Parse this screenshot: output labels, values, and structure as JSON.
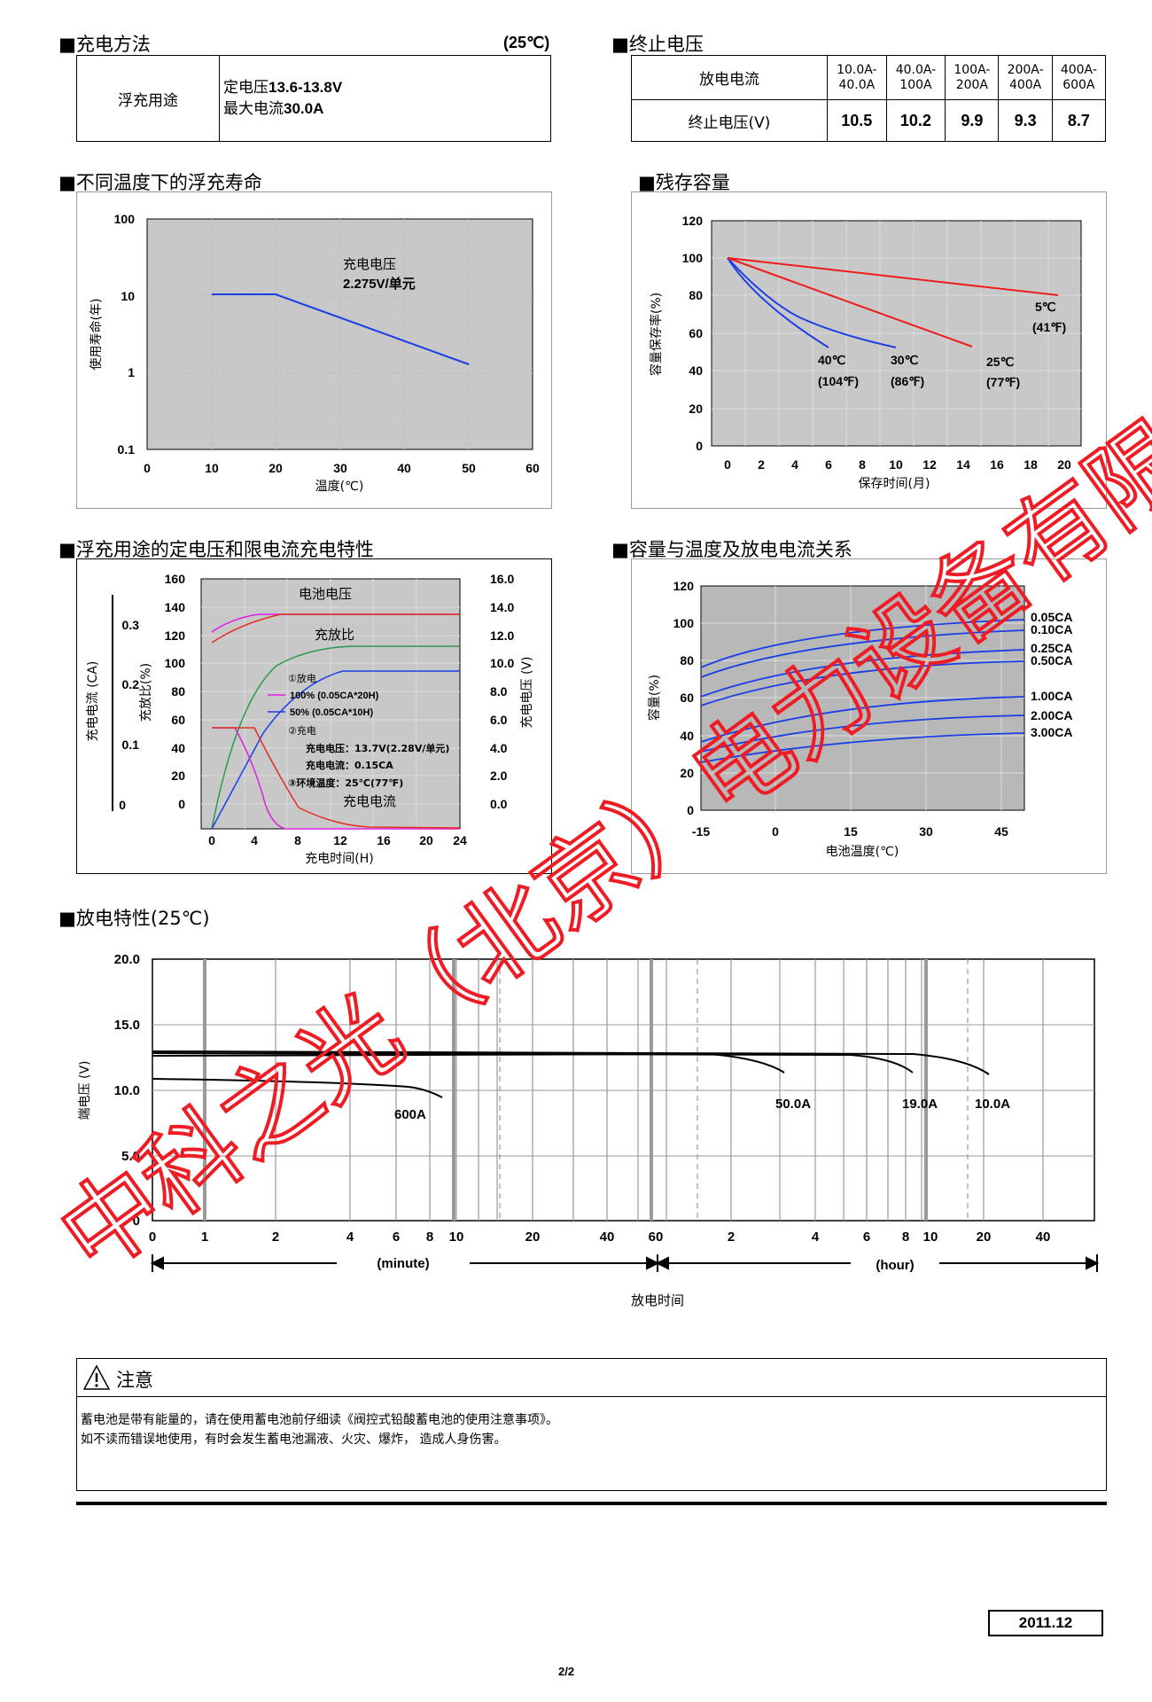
{
  "charge_method": {
    "title": "■充电方法",
    "temp": "(25℃)",
    "mode": "浮充用途",
    "voltage_prefix": "定电压",
    "voltage_value": "13.6-13.8V",
    "current_prefix": "最大电流",
    "current_value": "30.0A"
  },
  "end_voltage": {
    "title": "■终止电压",
    "row1_label": "放电电流",
    "row2_label": "终止电压(V)",
    "currents": [
      [
        "10.0A-",
        "40.0A"
      ],
      [
        "40.0A-",
        "100A"
      ],
      [
        "100A-",
        "200A"
      ],
      [
        "200A-",
        "400A"
      ],
      [
        "400A-",
        "600A"
      ]
    ],
    "voltages": [
      "10.5",
      "10.2",
      "9.9",
      "9.3",
      "8.7"
    ]
  },
  "float_life": {
    "title": "■不同温度下的浮充寿命",
    "annotation_line1": "充电电压",
    "annotation_line2": "2.275V/单元",
    "xlabel": "温度(℃)",
    "ylabel": "使用寿命(年)",
    "xticks": [
      "0",
      "10",
      "20",
      "30",
      "40",
      "50",
      "60"
    ],
    "yticks": [
      "100",
      "10",
      "1",
      "0.1"
    ],
    "series_color": "#1a3ee6"
  },
  "residual_capacity": {
    "title": "■残存容量",
    "xlabel": "保存时间(月)",
    "ylabel": "容量保存率(%)",
    "xticks": [
      "0",
      "2",
      "4",
      "6",
      "8",
      "10",
      "12",
      "14",
      "16",
      "18",
      "20"
    ],
    "yticks": [
      "120",
      "100",
      "80",
      "60",
      "40",
      "20",
      "0"
    ],
    "labels": [
      [
        "5℃",
        "(41℉)"
      ],
      [
        "25℃",
        "(77℉)"
      ],
      [
        "30℃",
        "(86℉)"
      ],
      [
        "40℃",
        "(104℉)"
      ]
    ],
    "colors": {
      "blue": "#1a3ee6",
      "red": "#ee1c1c"
    }
  },
  "float_charge": {
    "title": "■浮充用途的定电压和限电流充电特性",
    "label_voltage": "电池电压",
    "label_ratio": "充放比",
    "label_current": "充电电流",
    "note_discharge": "①放电",
    "legend1": "100% (0.05CA*20H)",
    "legend2": "50% (0.05CA*10H)",
    "note_charge": "②充电",
    "charge_voltage": "充电电压：13.7V(2.28V/单元)",
    "charge_current": "充电电流：0.15CA",
    "ambient": "③环境温度：25℃(77℉)",
    "xlabel": "充电时间(H)",
    "ylabel_left1": "充电电流 (CA)",
    "ylabel_left2": "充放比(%)",
    "ylabel_right": "充电电压 (V)",
    "xticks": [
      "0",
      "4",
      "8",
      "12",
      "16",
      "20",
      "24"
    ],
    "yticks_ratio": [
      "160",
      "140",
      "120",
      "100",
      "80",
      "60",
      "40",
      "20",
      "0"
    ],
    "yticks_ca": [
      "0.3",
      "0.2",
      "0.1",
      "0"
    ],
    "yticks_v": [
      "16.0",
      "14.0",
      "12.0",
      "10.0",
      "8.0",
      "6.0",
      "4.0",
      "2.0",
      "0.0"
    ]
  },
  "capacity_temp": {
    "title": "■容量与温度及放电电流关系",
    "xlabel": "电池温度(℃)",
    "ylabel": "容量(%)",
    "xticks": [
      "-15",
      "0",
      "15",
      "30",
      "45"
    ],
    "yticks": [
      "120",
      "100",
      "80",
      "60",
      "40",
      "20",
      "0"
    ],
    "curves": [
      "0.05CA",
      "0.10CA",
      "0.25CA",
      "0.50CA",
      "1.00CA",
      "2.00CA",
      "3.00CA"
    ]
  },
  "discharge": {
    "title": "■放电特性(25℃)",
    "ylabel": "端电压 (V)",
    "yticks": [
      "20.0",
      "15.0",
      "10.0",
      "5.0",
      "0"
    ],
    "xticks": [
      "0",
      "1",
      "2",
      "4",
      "6",
      "8",
      "10",
      "20",
      "40",
      "60",
      "2",
      "4",
      "6",
      "8",
      "10",
      "20",
      "40"
    ],
    "minute_label": "(minute)",
    "hour_label": "(hour)",
    "xlabel": "放电时间",
    "curves": [
      "600A",
      "50.0A",
      "19.0A",
      "10.0A"
    ]
  },
  "caution": {
    "title": "注意",
    "line1": "蓄电池是带有能量的，请在使用蓄电池前仔细读《阀控式铅酸蓄电池的使用注意事项》。",
    "line2": "如不读而错误地使用，有时会发生蓄电池漏液、火灾、爆炸， 造成人身伤害。"
  },
  "footer": {
    "date": "2011.12",
    "page": "2/2"
  },
  "watermark": {
    "text": "中科之光（北京）电力设备有限公司",
    "color": "#ee1c24"
  }
}
